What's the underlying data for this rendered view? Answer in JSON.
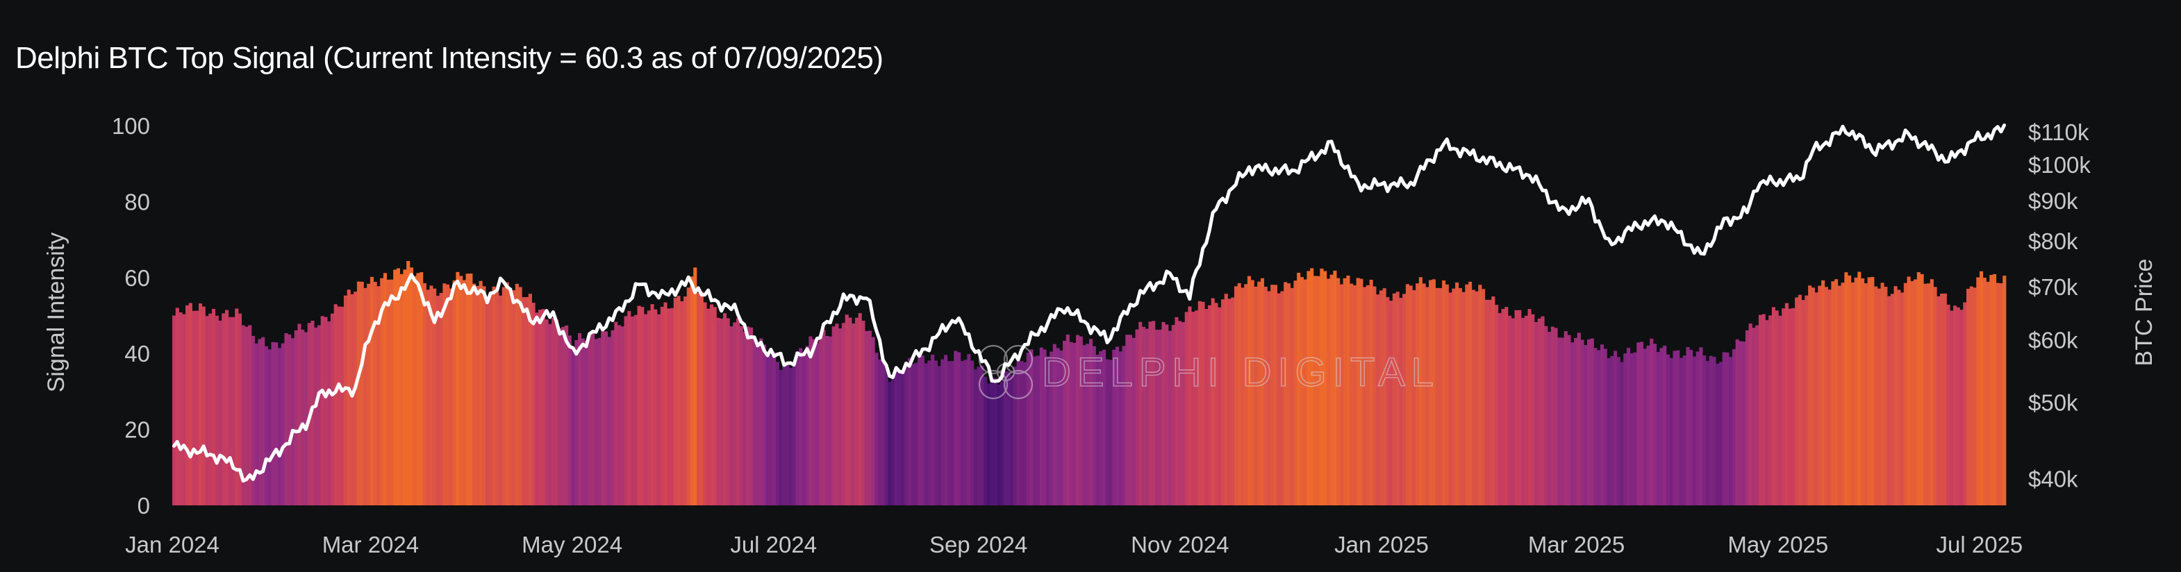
{
  "title": "Delphi BTC Top Signal (Current Intensity = 60.3 as of 07/09/2025)",
  "watermark": "DELPHI DIGITAL",
  "chart_data": {
    "type": "bar+line",
    "title": "Delphi BTC Top Signal (Current Intensity = 60.3 as of 07/09/2025)",
    "x_axis": {
      "type": "date",
      "range": [
        "2024-01-01",
        "2025-07-09"
      ],
      "tick_labels": [
        "Jan 2024",
        "Mar 2024",
        "May 2024",
        "Jul 2024",
        "Sep 2024",
        "Nov 2024",
        "Jan 2025",
        "Mar 2025",
        "May 2025",
        "Jul 2025"
      ],
      "tick_dates": [
        "2024-01-01",
        "2024-03-01",
        "2024-05-01",
        "2024-07-01",
        "2024-09-01",
        "2024-11-01",
        "2025-01-01",
        "2025-03-01",
        "2025-05-01",
        "2025-07-01"
      ]
    },
    "y_left": {
      "label": "Signal Intensity",
      "range": [
        0,
        100
      ],
      "ticks": [
        0,
        20,
        40,
        60,
        80,
        100
      ]
    },
    "y_right": {
      "label": "BTC Price",
      "scale": "log",
      "range": [
        37000,
        112000
      ],
      "ticks": [
        40000,
        50000,
        60000,
        70000,
        80000,
        90000,
        100000,
        110000
      ],
      "tick_labels": [
        "$40k",
        "$50k",
        "$60k",
        "$70k",
        "$80k",
        "$90k",
        "$100k",
        "$110k"
      ]
    },
    "color_scale": {
      "low": "#4a1472",
      "mid_low": "#8e2a84",
      "mid": "#cc3f5c",
      "high": "#ef6a2a"
    },
    "grid": false,
    "legend": "none",
    "signal_intensity_anchors": [
      [
        "2024-01-01",
        50
      ],
      [
        "2024-01-10",
        52
      ],
      [
        "2024-01-20",
        50
      ],
      [
        "2024-01-25",
        44
      ],
      [
        "2024-02-01",
        43
      ],
      [
        "2024-02-10",
        46
      ],
      [
        "2024-02-20",
        53
      ],
      [
        "2024-02-28",
        58
      ],
      [
        "2024-03-05",
        61
      ],
      [
        "2024-03-12",
        62
      ],
      [
        "2024-03-20",
        57
      ],
      [
        "2024-03-28",
        60
      ],
      [
        "2024-04-05",
        57
      ],
      [
        "2024-04-12",
        58
      ],
      [
        "2024-04-20",
        52
      ],
      [
        "2024-04-28",
        48
      ],
      [
        "2024-05-01",
        42
      ],
      [
        "2024-05-10",
        46
      ],
      [
        "2024-05-20",
        50
      ],
      [
        "2024-05-28",
        53
      ],
      [
        "2024-06-05",
        55
      ],
      [
        "2024-06-07",
        63
      ],
      [
        "2024-06-08",
        55
      ],
      [
        "2024-06-15",
        51
      ],
      [
        "2024-06-22",
        46
      ],
      [
        "2024-07-01",
        40
      ],
      [
        "2024-07-05",
        36
      ],
      [
        "2024-07-15",
        45
      ],
      [
        "2024-07-22",
        49
      ],
      [
        "2024-07-28",
        48
      ],
      [
        "2024-08-05",
        35
      ],
      [
        "2024-08-15",
        38
      ],
      [
        "2024-08-25",
        40
      ],
      [
        "2024-09-05",
        33
      ],
      [
        "2024-09-15",
        38
      ],
      [
        "2024-09-28",
        44
      ],
      [
        "2024-10-10",
        40
      ],
      [
        "2024-10-22",
        47
      ],
      [
        "2024-11-01",
        49
      ],
      [
        "2024-11-10",
        53
      ],
      [
        "2024-11-20",
        58
      ],
      [
        "2024-12-01",
        58
      ],
      [
        "2024-12-10",
        60
      ],
      [
        "2024-12-17",
        62
      ],
      [
        "2024-12-25",
        58
      ],
      [
        "2025-01-05",
        56
      ],
      [
        "2025-01-20",
        59
      ],
      [
        "2025-01-31",
        56
      ],
      [
        "2025-02-10",
        51
      ],
      [
        "2025-02-25",
        46
      ],
      [
        "2025-03-05",
        42
      ],
      [
        "2025-03-15",
        40
      ],
      [
        "2025-03-25",
        42
      ],
      [
        "2025-04-05",
        40
      ],
      [
        "2025-04-12",
        38
      ],
      [
        "2025-04-22",
        45
      ],
      [
        "2025-05-01",
        52
      ],
      [
        "2025-05-10",
        55
      ],
      [
        "2025-05-22",
        61
      ],
      [
        "2025-05-30",
        58
      ],
      [
        "2025-06-05",
        57
      ],
      [
        "2025-06-12",
        60
      ],
      [
        "2025-06-20",
        56
      ],
      [
        "2025-06-25",
        52
      ],
      [
        "2025-07-01",
        59
      ],
      [
        "2025-07-09",
        60.3
      ]
    ],
    "btc_price_anchors": [
      [
        "2024-01-01",
        44000
      ],
      [
        "2024-01-05",
        43500
      ],
      [
        "2024-01-12",
        43000
      ],
      [
        "2024-01-20",
        41500
      ],
      [
        "2024-01-23",
        39500
      ],
      [
        "2024-02-01",
        43000
      ],
      [
        "2024-02-10",
        47000
      ],
      [
        "2024-02-15",
        51500
      ],
      [
        "2024-02-25",
        52000
      ],
      [
        "2024-03-01",
        62000
      ],
      [
        "2024-03-05",
        66000
      ],
      [
        "2024-03-14",
        72000
      ],
      [
        "2024-03-20",
        63000
      ],
      [
        "2024-03-27",
        70500
      ],
      [
        "2024-04-05",
        68000
      ],
      [
        "2024-04-10",
        71000
      ],
      [
        "2024-04-18",
        63500
      ],
      [
        "2024-04-25",
        64500
      ],
      [
        "2024-05-01",
        57500
      ],
      [
        "2024-05-08",
        61500
      ],
      [
        "2024-05-15",
        65000
      ],
      [
        "2024-05-21",
        70500
      ],
      [
        "2024-05-28",
        68000
      ],
      [
        "2024-06-05",
        71000
      ],
      [
        "2024-06-12",
        67500
      ],
      [
        "2024-06-20",
        65000
      ],
      [
        "2024-06-24",
        60000
      ],
      [
        "2024-07-05",
        56000
      ],
      [
        "2024-07-12",
        58000
      ],
      [
        "2024-07-22",
        67500
      ],
      [
        "2024-07-29",
        68000
      ],
      [
        "2024-08-05",
        53500
      ],
      [
        "2024-08-15",
        58000
      ],
      [
        "2024-08-25",
        64000
      ],
      [
        "2024-09-06",
        53000
      ],
      [
        "2024-09-15",
        59000
      ],
      [
        "2024-09-27",
        66000
      ],
      [
        "2024-10-10",
        60000
      ],
      [
        "2024-10-20",
        68500
      ],
      [
        "2024-10-29",
        72500
      ],
      [
        "2024-11-04",
        68000
      ],
      [
        "2024-11-12",
        88000
      ],
      [
        "2024-11-22",
        99000
      ],
      [
        "2024-12-05",
        98000
      ],
      [
        "2024-12-17",
        106000
      ],
      [
        "2024-12-25",
        94000
      ],
      [
        "2025-01-10",
        94500
      ],
      [
        "2025-01-20",
        106000
      ],
      [
        "2025-01-31",
        102000
      ],
      [
        "2025-02-15",
        97000
      ],
      [
        "2025-02-25",
        87000
      ],
      [
        "2025-03-05",
        90000
      ],
      [
        "2025-03-11",
        79000
      ],
      [
        "2025-03-20",
        84000
      ],
      [
        "2025-03-28",
        85000
      ],
      [
        "2025-04-08",
        76500
      ],
      [
        "2025-04-15",
        84500
      ],
      [
        "2025-04-22",
        87000
      ],
      [
        "2025-04-25",
        94500
      ],
      [
        "2025-05-08",
        96000
      ],
      [
        "2025-05-12",
        104000
      ],
      [
        "2025-05-22",
        111000
      ],
      [
        "2025-05-31",
        104000
      ],
      [
        "2025-06-10",
        109000
      ],
      [
        "2025-06-22",
        101000
      ],
      [
        "2025-06-30",
        107500
      ],
      [
        "2025-07-09",
        111000
      ]
    ]
  }
}
